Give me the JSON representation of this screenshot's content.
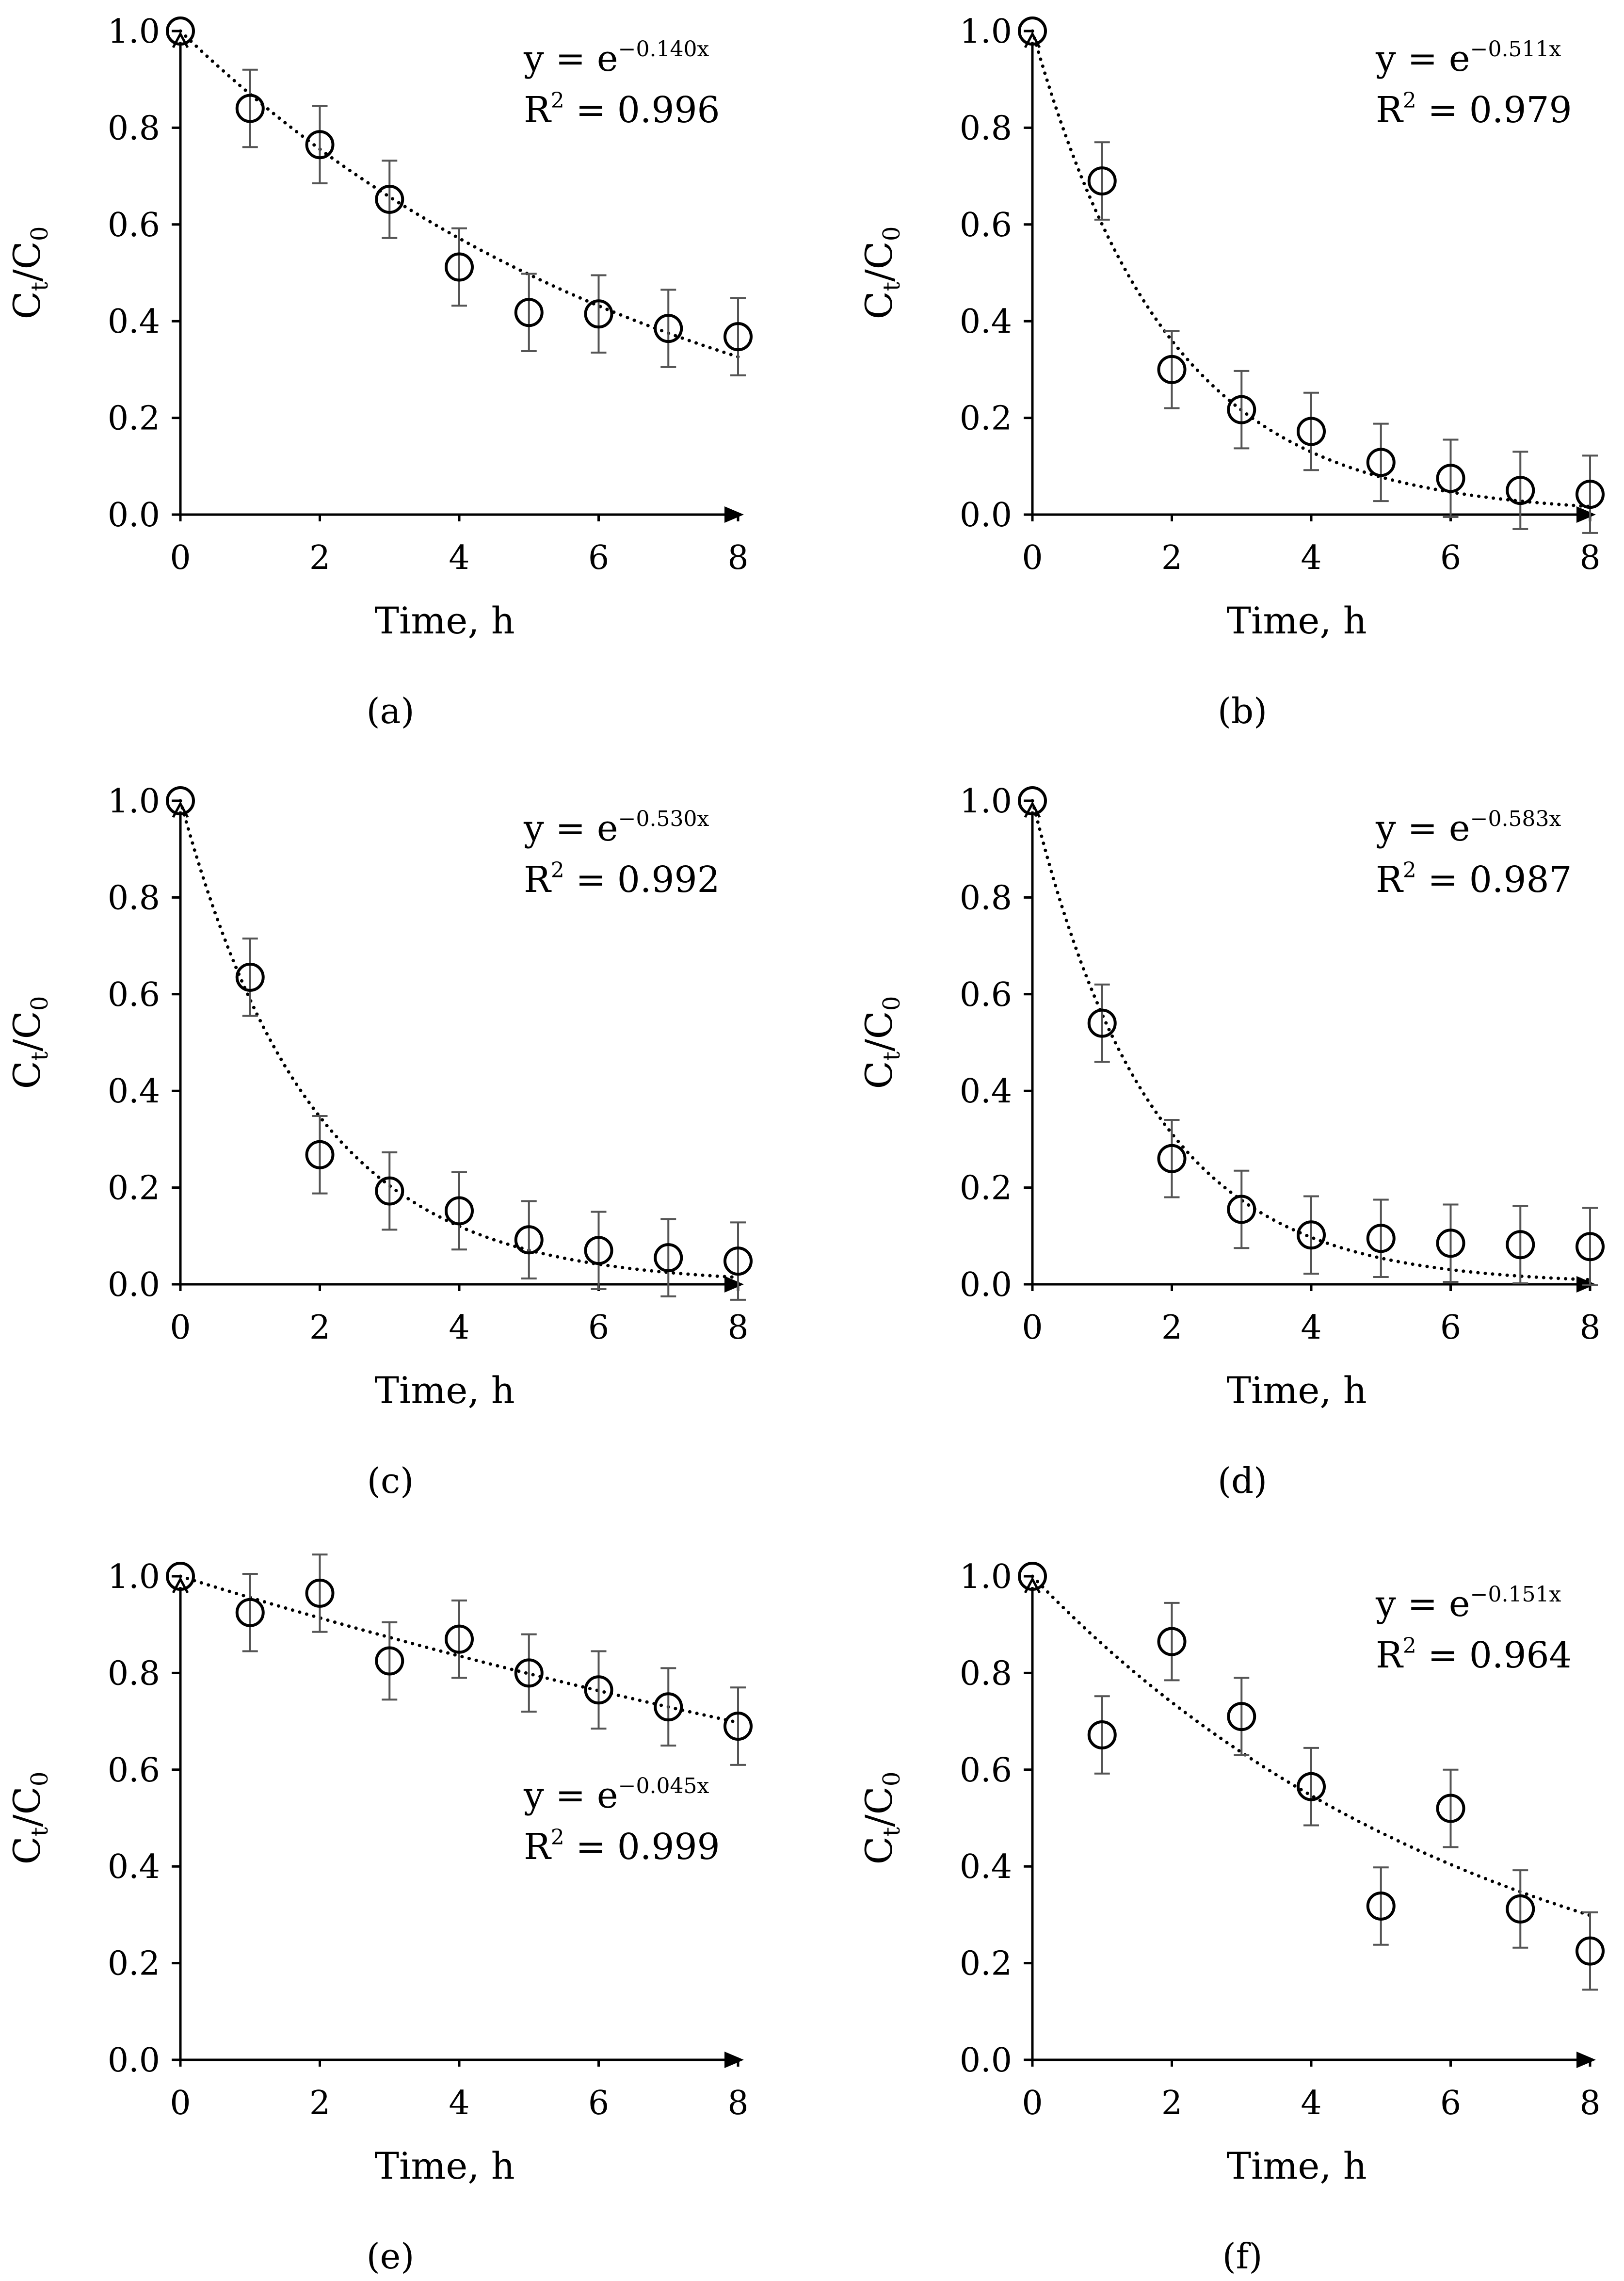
{
  "figure": {
    "panels": [
      "a",
      "b",
      "c",
      "d",
      "e",
      "f"
    ]
  },
  "chart_data": [
    {
      "panel": "a",
      "caption": "(a)",
      "type": "scatter",
      "xlabel": "Time, h",
      "ylabel": "Ct/C0",
      "ylabel_main": "C",
      "ylabel_sub1": "t",
      "ylabel_mid": "/C",
      "ylabel_sub2": "0",
      "xlim": [
        0,
        8
      ],
      "ylim": [
        0,
        1.0
      ],
      "xticks": [
        "0",
        "2",
        "4",
        "6",
        "8"
      ],
      "yticks": [
        "0.0",
        "0.2",
        "0.4",
        "0.6",
        "0.8",
        "1.0"
      ],
      "x": [
        0,
        1,
        2,
        3,
        4,
        5,
        6,
        7,
        8
      ],
      "y": [
        1.0,
        0.84,
        0.765,
        0.652,
        0.512,
        0.418,
        0.415,
        0.385,
        0.368
      ],
      "error": [
        0,
        0.08,
        0.08,
        0.08,
        0.08,
        0.08,
        0.08,
        0.08,
        0.08
      ],
      "fit_k": 0.14,
      "equation_prefix": "y = e",
      "equation_exponent": "−0.140x",
      "r2_prefix": "R",
      "r2_sup": "2",
      "r2_value": " = 0.996",
      "equation_position": "top-right"
    },
    {
      "panel": "b",
      "caption": "(b)",
      "type": "scatter",
      "xlabel": "Time, h",
      "ylabel": "Ct/C0",
      "ylabel_main": "C",
      "ylabel_sub1": "t",
      "ylabel_mid": "/C",
      "ylabel_sub2": "0",
      "xlim": [
        0,
        8
      ],
      "ylim": [
        0,
        1.0
      ],
      "xticks": [
        "0",
        "2",
        "4",
        "6",
        "8"
      ],
      "yticks": [
        "0.0",
        "0.2",
        "0.4",
        "0.6",
        "0.8",
        "1.0"
      ],
      "x": [
        0,
        1,
        2,
        3,
        4,
        5,
        6,
        7,
        8
      ],
      "y": [
        1.0,
        0.69,
        0.3,
        0.217,
        0.172,
        0.108,
        0.075,
        0.05,
        0.042
      ],
      "error": [
        0,
        0.08,
        0.08,
        0.08,
        0.08,
        0.08,
        0.08,
        0.08,
        0.08
      ],
      "fit_k": 0.511,
      "equation_prefix": "y = e",
      "equation_exponent": "−0.511x",
      "r2_prefix": "R",
      "r2_sup": "2",
      "r2_value": " = 0.979",
      "equation_position": "top-right"
    },
    {
      "panel": "c",
      "caption": "(c)",
      "type": "scatter",
      "xlabel": "Time, h",
      "ylabel": "Ct/C0",
      "ylabel_main": "C",
      "ylabel_sub1": "t",
      "ylabel_mid": "/C",
      "ylabel_sub2": "0",
      "xlim": [
        0,
        8
      ],
      "ylim": [
        0,
        1.0
      ],
      "xticks": [
        "0",
        "2",
        "4",
        "6",
        "8"
      ],
      "yticks": [
        "0.0",
        "0.2",
        "0.4",
        "0.6",
        "0.8",
        "1.0"
      ],
      "x": [
        0,
        1,
        2,
        3,
        4,
        5,
        6,
        7,
        8
      ],
      "y": [
        1.0,
        0.635,
        0.268,
        0.193,
        0.152,
        0.092,
        0.07,
        0.055,
        0.048
      ],
      "error": [
        0,
        0.08,
        0.08,
        0.08,
        0.08,
        0.08,
        0.08,
        0.08,
        0.08
      ],
      "fit_k": 0.53,
      "equation_prefix": "y = e",
      "equation_exponent": "−0.530x",
      "r2_prefix": "R",
      "r2_sup": "2",
      "r2_value": " = 0.992",
      "equation_position": "top-right"
    },
    {
      "panel": "d",
      "caption": "(d)",
      "type": "scatter",
      "xlabel": "Time, h",
      "ylabel": "Ct/C0",
      "ylabel_main": "C",
      "ylabel_sub1": "t",
      "ylabel_mid": "/C",
      "ylabel_sub2": "0",
      "xlim": [
        0,
        8
      ],
      "ylim": [
        0,
        1.0
      ],
      "xticks": [
        "0",
        "2",
        "4",
        "6",
        "8"
      ],
      "yticks": [
        "0.0",
        "0.2",
        "0.4",
        "0.6",
        "0.8",
        "1.0"
      ],
      "x": [
        0,
        1,
        2,
        3,
        4,
        5,
        6,
        7,
        8
      ],
      "y": [
        1.0,
        0.54,
        0.26,
        0.155,
        0.102,
        0.095,
        0.085,
        0.082,
        0.078
      ],
      "error": [
        0,
        0.08,
        0.08,
        0.08,
        0.08,
        0.08,
        0.08,
        0.08,
        0.08
      ],
      "fit_k": 0.583,
      "equation_prefix": "y = e",
      "equation_exponent": "−0.583x",
      "r2_prefix": "R",
      "r2_sup": "2",
      "r2_value": " = 0.987",
      "equation_position": "top-right"
    },
    {
      "panel": "e",
      "caption": "(e)",
      "type": "scatter",
      "xlabel": "Time, h",
      "ylabel": "Ct/C0",
      "ylabel_main": "C",
      "ylabel_sub1": "t",
      "ylabel_mid": "/C",
      "ylabel_sub2": "0",
      "xlim": [
        0,
        8
      ],
      "ylim": [
        0,
        1.0
      ],
      "xticks": [
        "0",
        "2",
        "4",
        "6",
        "8"
      ],
      "yticks": [
        "0.0",
        "0.2",
        "0.4",
        "0.6",
        "0.8",
        "1.0"
      ],
      "x": [
        0,
        1,
        2,
        3,
        4,
        5,
        6,
        7,
        8
      ],
      "y": [
        1.0,
        0.925,
        0.965,
        0.825,
        0.87,
        0.8,
        0.765,
        0.73,
        0.69
      ],
      "error": [
        0,
        0.08,
        0.08,
        0.08,
        0.08,
        0.08,
        0.08,
        0.08,
        0.08
      ],
      "fit_k": 0.045,
      "equation_prefix": "y = e",
      "equation_exponent": "−0.045x",
      "r2_prefix": "R",
      "r2_sup": "2",
      "r2_value": " = 0.999",
      "equation_position": "bottom-right"
    },
    {
      "panel": "f",
      "caption": "(f)",
      "type": "scatter",
      "xlabel": "Time, h",
      "ylabel": "Ct/C0",
      "ylabel_main": "C",
      "ylabel_sub1": "t",
      "ylabel_mid": "/C",
      "ylabel_sub2": "0",
      "xlim": [
        0,
        8
      ],
      "ylim": [
        0,
        1.0
      ],
      "xticks": [
        "0",
        "2",
        "4",
        "6",
        "8"
      ],
      "yticks": [
        "0.0",
        "0.2",
        "0.4",
        "0.6",
        "0.8",
        "1.0"
      ],
      "x": [
        0,
        1,
        2,
        3,
        4,
        5,
        6,
        7,
        8
      ],
      "y": [
        1.0,
        0.672,
        0.865,
        0.71,
        0.565,
        0.318,
        0.52,
        0.312,
        0.225
      ],
      "error": [
        0,
        0.08,
        0.08,
        0.08,
        0.08,
        0.08,
        0.08,
        0.08,
        0.08
      ],
      "fit_k": 0.151,
      "equation_prefix": "y = e",
      "equation_exponent": "−0.151x",
      "r2_prefix": "R",
      "r2_sup": "2",
      "r2_value": " = 0.964",
      "equation_position": "top-right"
    }
  ]
}
